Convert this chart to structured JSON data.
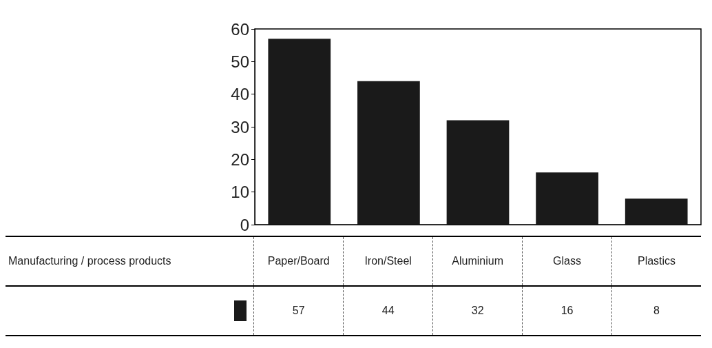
{
  "chart_data": {
    "type": "bar",
    "categories": [
      "Paper/Board",
      "Iron/Steel",
      "Aluminium",
      "Glass",
      "Plastics"
    ],
    "series": [
      {
        "name": "Manufacturing / process products",
        "color": "#1a1a1a",
        "values": [
          57,
          44,
          32,
          16,
          8
        ]
      }
    ],
    "ylim": [
      0,
      60
    ],
    "yticks": [
      0,
      10,
      20,
      30,
      40,
      50,
      60
    ],
    "data_labels": true
  }
}
